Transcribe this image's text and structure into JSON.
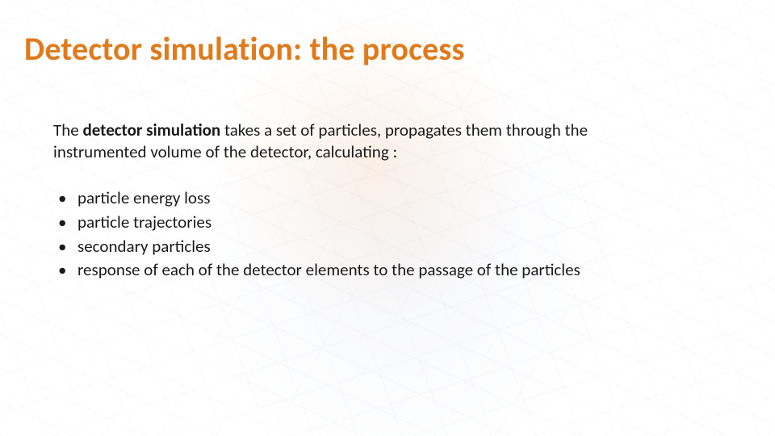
{
  "colors": {
    "title": "#e07a1b",
    "body_text": "#1a1a1a",
    "background": "#ffffff"
  },
  "typography": {
    "title_fontsize_pt": 30,
    "title_weight": "700",
    "body_fontsize_pt": 16,
    "body_weight": "400",
    "font_family": "Calibri"
  },
  "title": "Detector simulation: the process",
  "intro": {
    "lead": "The ",
    "bold": "detector simulation",
    "rest": " takes a set of particles, propagates them through the",
    "line2": "instrumented volume of the detector, calculating :"
  },
  "bullets": [
    "particle energy loss",
    "particle trajectories",
    "secondary particles",
    "response of each of the detector elements to the passage of the particles"
  ],
  "title_style": "color:#e07a1b"
}
